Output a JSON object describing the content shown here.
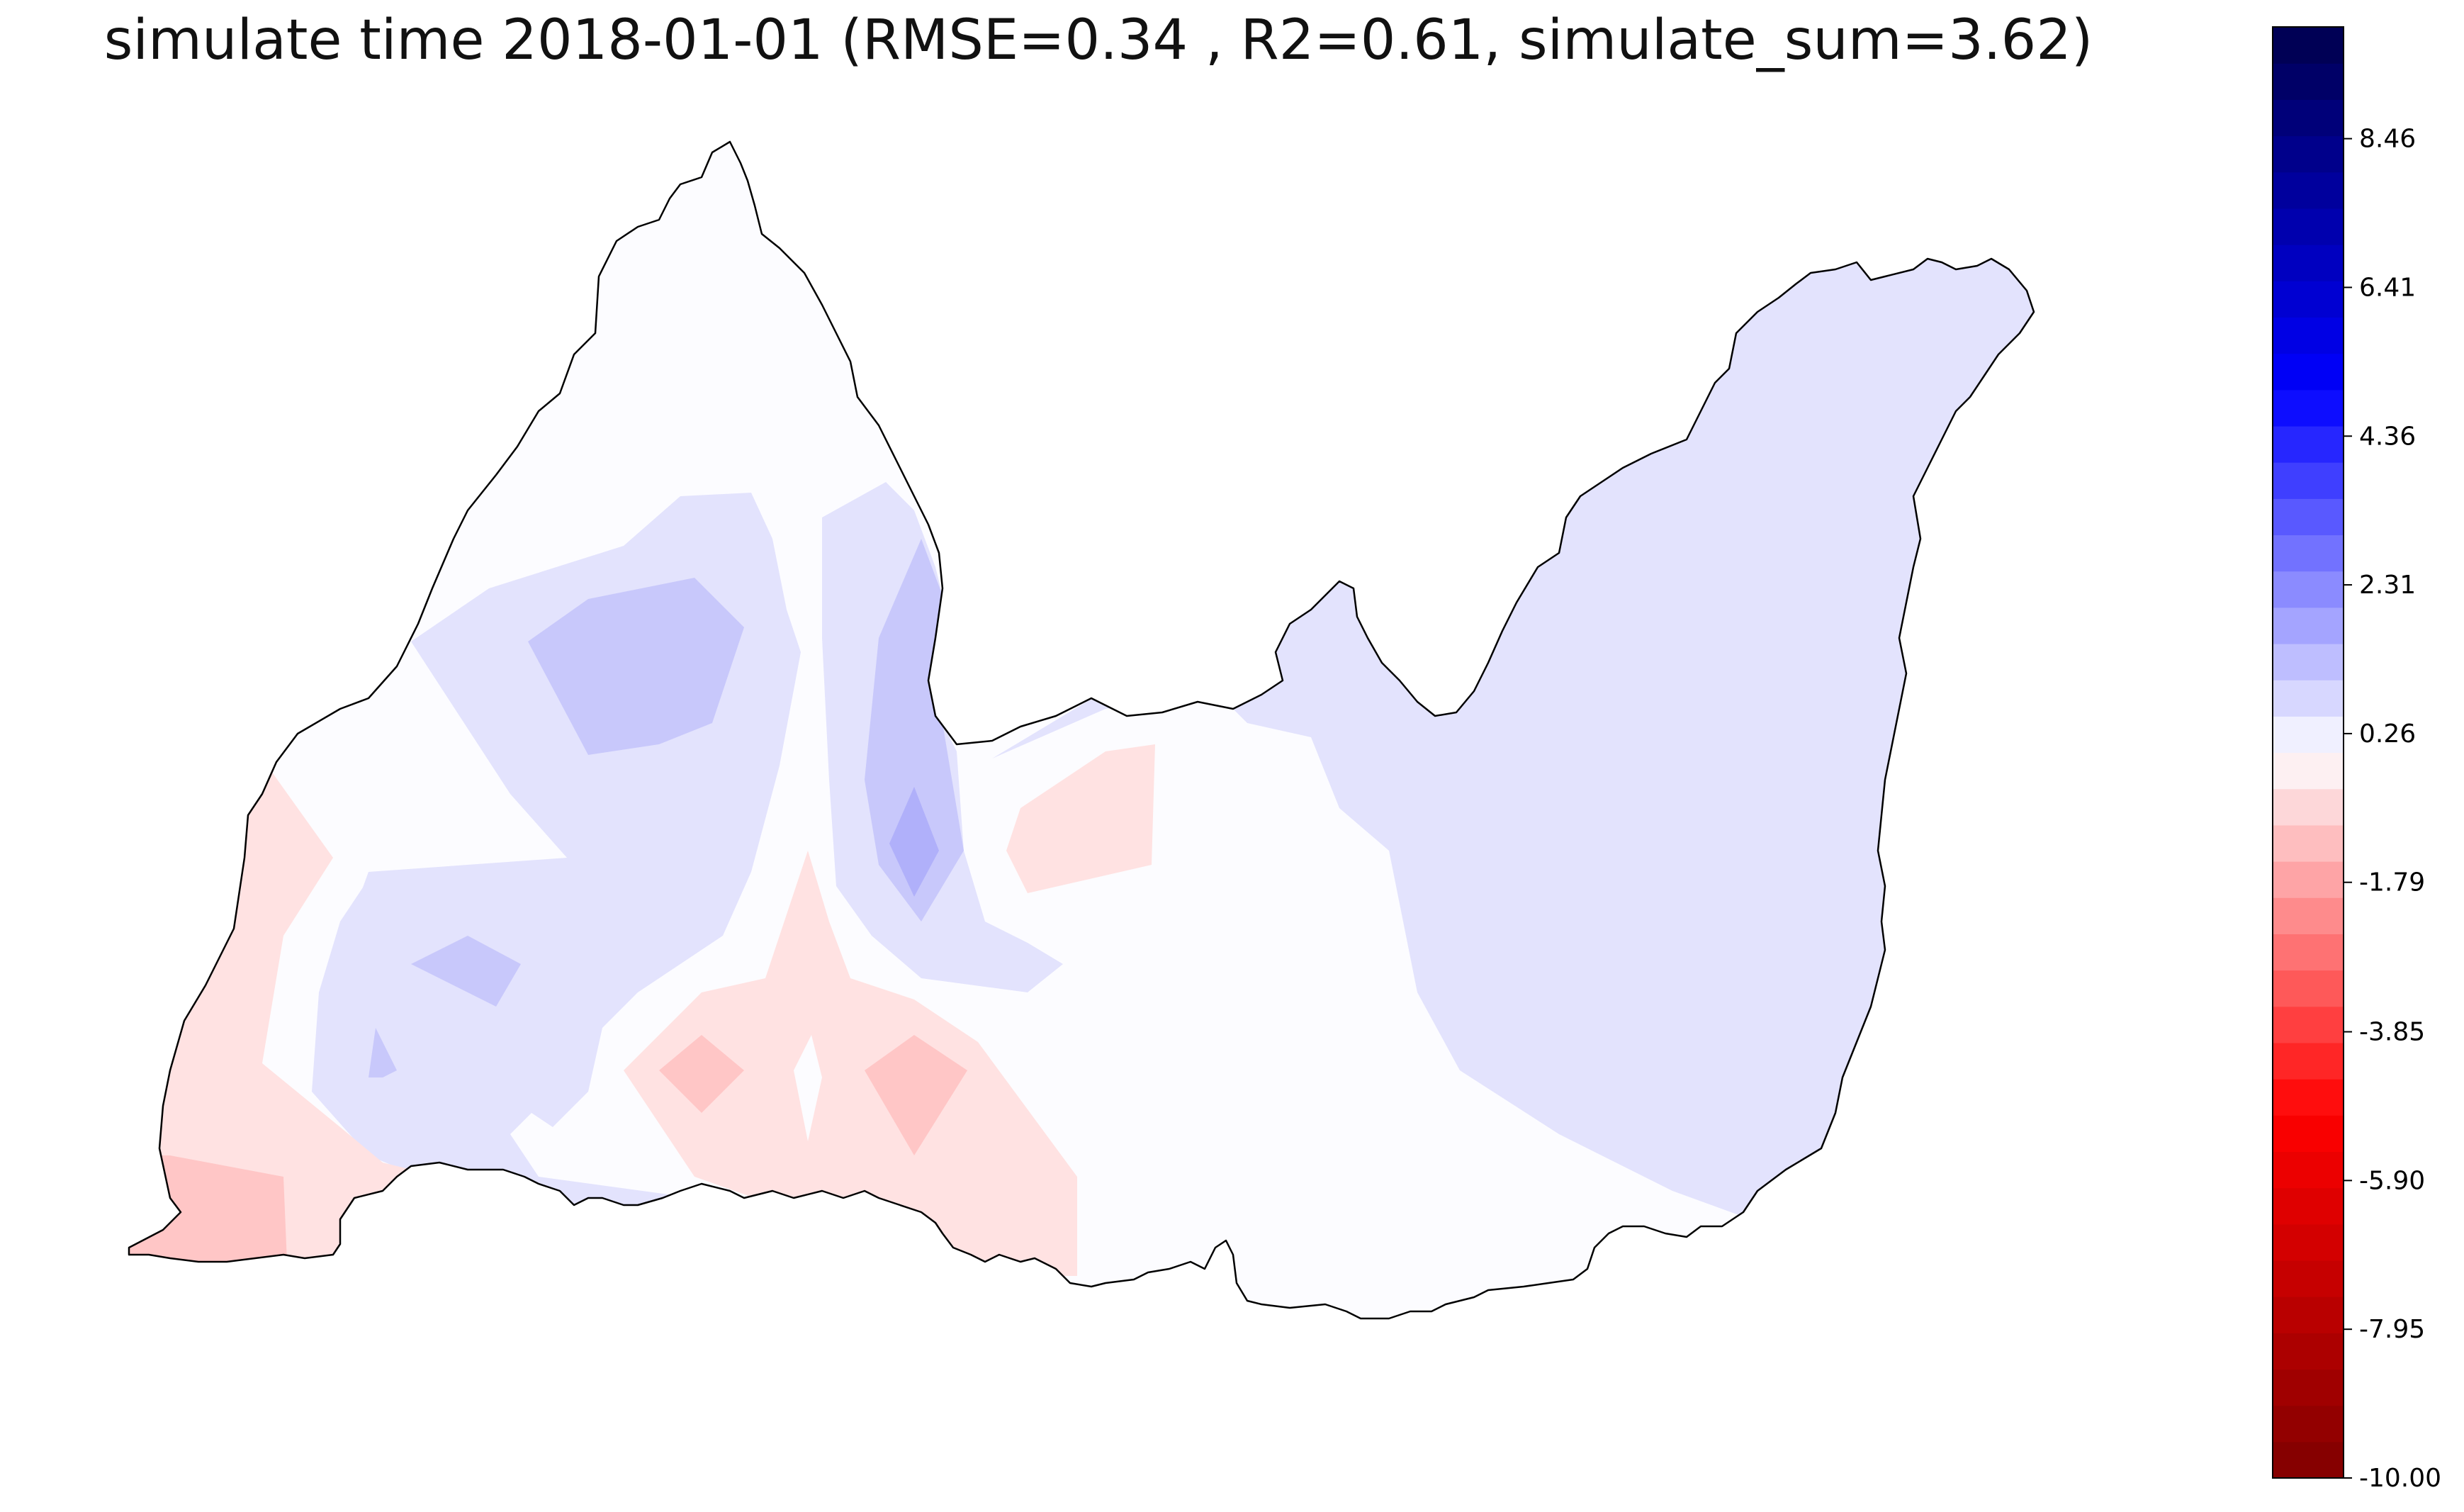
{
  "title": "simulate time 2018-01-01 (RMSE=0.34 , R2=0.61, simulate_sum=3.62)",
  "colorbar": {
    "min": -10.0,
    "max": 10.0,
    "levels": 40,
    "tick_labels": [
      "8.46",
      "6.41",
      "4.36",
      "2.31",
      "0.26",
      "-1.79",
      "-3.85",
      "-5.90",
      "-7.95",
      "-10.00"
    ],
    "tick_values": [
      8.46,
      6.41,
      4.36,
      2.31,
      0.26,
      -1.79,
      -3.85,
      -5.9,
      -7.95,
      -10.0
    ],
    "colormap": "seismic_r",
    "low_color": "#800000",
    "zero_color": "#fdfdff",
    "high_color": "#00004c"
  },
  "map": {
    "outline_color": "#000000",
    "field_levels": {
      "near_zero": "#fcfcff",
      "light_blue": "#e3e3fd",
      "mid_blue": "#c8c8fb",
      "deeper_blue": "#b0b0fa",
      "light_red": "#ffe2e2",
      "mid_red": "#ffc6c6"
    }
  }
}
